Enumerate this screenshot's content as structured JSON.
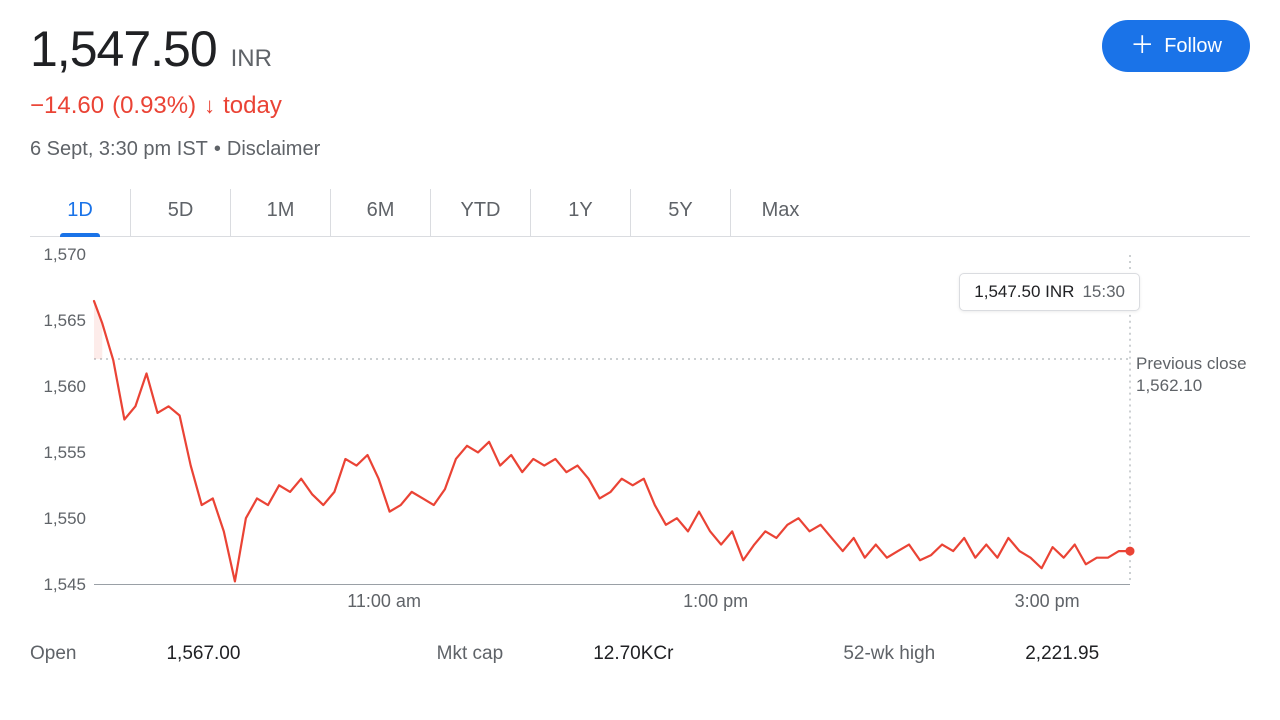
{
  "header": {
    "price": "1,547.50",
    "currency": "INR",
    "change": "−14.60",
    "change_pct": "(0.93%)",
    "period": "today",
    "timestamp": "6 Sept, 3:30 pm IST",
    "disclaimer": "Disclaimer",
    "follow_label": "Follow"
  },
  "tabs": {
    "items": [
      "1D",
      "5D",
      "1M",
      "6M",
      "YTD",
      "1Y",
      "5Y",
      "Max"
    ],
    "active_index": 0
  },
  "chart": {
    "type": "line",
    "ylim": [
      1545,
      1570
    ],
    "ytick_step": 5,
    "yticks": [
      "1,570",
      "1,565",
      "1,560",
      "1,555",
      "1,550",
      "1,545"
    ],
    "xlim_minutes": [
      555,
      930
    ],
    "xticks": [
      {
        "label": "11:00 am",
        "minutes": 660
      },
      {
        "label": "1:00 pm",
        "minutes": 780
      },
      {
        "label": "3:00 pm",
        "minutes": 900
      }
    ],
    "previous_close": 1562.1,
    "previous_close_label": "Previous close",
    "previous_close_value": "1,562.10",
    "tooltip": {
      "value": "1,547.50 INR",
      "time": "15:30"
    },
    "line_color": "#ea4335",
    "fill_color": "rgba(234,67,53,0.10)",
    "line_width": 2.2,
    "end_dot_radius": 4.5,
    "grid_dotted_color": "#9aa0a6",
    "background_color": "#ffffff",
    "axis_color": "#9aa0a6",
    "series": [
      [
        555,
        1566.5
      ],
      [
        558,
        1564.8
      ],
      [
        562,
        1562.0
      ],
      [
        566,
        1557.5
      ],
      [
        570,
        1558.5
      ],
      [
        574,
        1561.0
      ],
      [
        578,
        1558.0
      ],
      [
        582,
        1558.5
      ],
      [
        586,
        1557.8
      ],
      [
        590,
        1554.0
      ],
      [
        594,
        1551.0
      ],
      [
        598,
        1551.5
      ],
      [
        602,
        1549.0
      ],
      [
        606,
        1545.2
      ],
      [
        610,
        1550.0
      ],
      [
        614,
        1551.5
      ],
      [
        618,
        1551.0
      ],
      [
        622,
        1552.5
      ],
      [
        626,
        1552.0
      ],
      [
        630,
        1553.0
      ],
      [
        634,
        1551.8
      ],
      [
        638,
        1551.0
      ],
      [
        642,
        1552.0
      ],
      [
        646,
        1554.5
      ],
      [
        650,
        1554.0
      ],
      [
        654,
        1554.8
      ],
      [
        658,
        1553.0
      ],
      [
        662,
        1550.5
      ],
      [
        666,
        1551.0
      ],
      [
        670,
        1552.0
      ],
      [
        674,
        1551.5
      ],
      [
        678,
        1551.0
      ],
      [
        682,
        1552.2
      ],
      [
        686,
        1554.5
      ],
      [
        690,
        1555.5
      ],
      [
        694,
        1555.0
      ],
      [
        698,
        1555.8
      ],
      [
        702,
        1554.0
      ],
      [
        706,
        1554.8
      ],
      [
        710,
        1553.5
      ],
      [
        714,
        1554.5
      ],
      [
        718,
        1554.0
      ],
      [
        722,
        1554.5
      ],
      [
        726,
        1553.5
      ],
      [
        730,
        1554.0
      ],
      [
        734,
        1553.0
      ],
      [
        738,
        1551.5
      ],
      [
        742,
        1552.0
      ],
      [
        746,
        1553.0
      ],
      [
        750,
        1552.5
      ],
      [
        754,
        1553.0
      ],
      [
        758,
        1551.0
      ],
      [
        762,
        1549.5
      ],
      [
        766,
        1550.0
      ],
      [
        770,
        1549.0
      ],
      [
        774,
        1550.5
      ],
      [
        778,
        1549.0
      ],
      [
        782,
        1548.0
      ],
      [
        786,
        1549.0
      ],
      [
        790,
        1546.8
      ],
      [
        794,
        1548.0
      ],
      [
        798,
        1549.0
      ],
      [
        802,
        1548.5
      ],
      [
        806,
        1549.5
      ],
      [
        810,
        1550.0
      ],
      [
        814,
        1549.0
      ],
      [
        818,
        1549.5
      ],
      [
        822,
        1548.5
      ],
      [
        826,
        1547.5
      ],
      [
        830,
        1548.5
      ],
      [
        834,
        1547.0
      ],
      [
        838,
        1548.0
      ],
      [
        842,
        1547.0
      ],
      [
        846,
        1547.5
      ],
      [
        850,
        1548.0
      ],
      [
        854,
        1546.8
      ],
      [
        858,
        1547.2
      ],
      [
        862,
        1548.0
      ],
      [
        866,
        1547.5
      ],
      [
        870,
        1548.5
      ],
      [
        874,
        1547.0
      ],
      [
        878,
        1548.0
      ],
      [
        882,
        1547.0
      ],
      [
        886,
        1548.5
      ],
      [
        890,
        1547.5
      ],
      [
        894,
        1547.0
      ],
      [
        898,
        1546.2
      ],
      [
        902,
        1547.8
      ],
      [
        906,
        1547.0
      ],
      [
        910,
        1548.0
      ],
      [
        914,
        1546.5
      ],
      [
        918,
        1547.0
      ],
      [
        922,
        1547.0
      ],
      [
        926,
        1547.5
      ],
      [
        930,
        1547.5
      ]
    ]
  },
  "stats": {
    "items": [
      {
        "label": "Open",
        "value": "1,567.00"
      },
      {
        "label": "Mkt cap",
        "value": "12.70KCr"
      },
      {
        "label": "52-wk high",
        "value": "2,221.95"
      }
    ]
  },
  "colors": {
    "negative": "#ea4335",
    "accent": "#1a73e8",
    "text_muted": "#5f6368",
    "text": "#202124",
    "border": "#dadce0"
  }
}
